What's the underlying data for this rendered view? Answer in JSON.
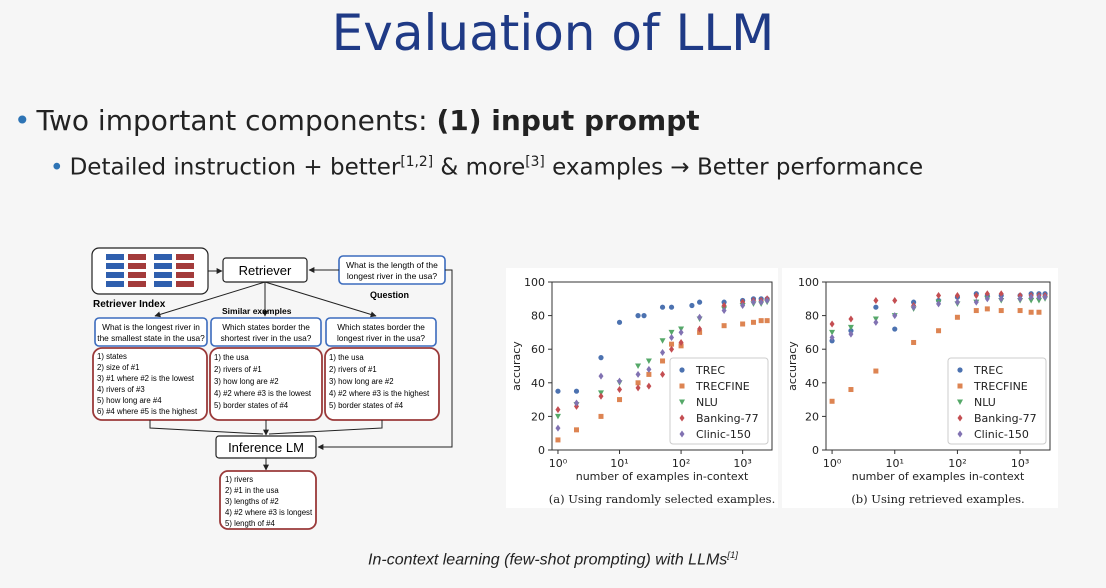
{
  "slide": {
    "title": "Evaluation of LLM",
    "bullet1_text": "Two important components: ",
    "bullet1_bold": "(1) input prompt",
    "bullet2": {
      "p1": "Detailed instruction + better",
      "ref1": "[1,2]",
      "p2": " & more",
      "ref2": "[3]",
      "p3": " examples → Better performance"
    },
    "caption": {
      "text": "In-context learning (few-shot prompting) with LLMs",
      "ref": "[1]"
    }
  },
  "diagram": {
    "retriever": "Retriever",
    "retriever_index": "Retriever Index",
    "similar_examples": "Similar examples",
    "question_label": "Question",
    "question_lines": [
      "What is the length of the",
      "longest river in the usa?"
    ],
    "examples": [
      {
        "q": [
          "What is the longest river in",
          "the smallest state in the usa?"
        ],
        "steps": [
          "1) states",
          "2) size of #1",
          "3) #1 where #2 is the lowest",
          "4) rivers of #3",
          "5) how long are #4",
          "6) #4 where #5 is the highest"
        ]
      },
      {
        "q": [
          "Which states border the",
          "shortest river in the usa?"
        ],
        "steps": [
          "1) the usa",
          "2) rivers of #1",
          "3) how long are #2",
          "4) #2 where #3 is the lowest",
          "5) border states of #4"
        ]
      },
      {
        "q": [
          "Which states border the",
          "longest river in the usa?"
        ],
        "steps": [
          "1) the usa",
          "2) rivers of #1",
          "3) how long are #2",
          "4) #2 where #3 is the highest",
          "5) border states of #4"
        ]
      }
    ],
    "inference": "Inference LM",
    "output": [
      "1) rivers",
      "2) #1 in the usa",
      "3) lengths of #2",
      "4) #2 where #3 is longest",
      "5) length of #4"
    ]
  },
  "chart_data": [
    {
      "type": "scatter",
      "caption": "(a) Using randomly selected examples.",
      "xlabel": "number of examples in-context",
      "ylabel": "accuracy",
      "xscale": "log",
      "xlim": [
        0.8,
        3000
      ],
      "ylim": [
        0,
        100
      ],
      "xticks": [
        "10⁰",
        "10¹",
        "10²",
        "10³"
      ],
      "yticks": [
        "0",
        "20",
        "40",
        "60",
        "80",
        "100"
      ],
      "legend_position": "lower-right",
      "series": [
        {
          "name": "TREC",
          "color": "#4c72b0",
          "marker": "circle",
          "points": [
            [
              1,
              35
            ],
            [
              2,
              35
            ],
            [
              5,
              55
            ],
            [
              10,
              76
            ],
            [
              20,
              80
            ],
            [
              25,
              80
            ],
            [
              50,
              85
            ],
            [
              70,
              85
            ],
            [
              150,
              86
            ],
            [
              200,
              88
            ],
            [
              500,
              88
            ],
            [
              1000,
              89
            ],
            [
              1500,
              90
            ],
            [
              2000,
              90
            ],
            [
              2500,
              90
            ]
          ]
        },
        {
          "name": "TRECFINE",
          "color": "#dd8452",
          "marker": "square",
          "points": [
            [
              1,
              6
            ],
            [
              2,
              12
            ],
            [
              5,
              20
            ],
            [
              10,
              30
            ],
            [
              20,
              40
            ],
            [
              30,
              45
            ],
            [
              50,
              53
            ],
            [
              70,
              63
            ],
            [
              100,
              62
            ],
            [
              200,
              70
            ],
            [
              500,
              74
            ],
            [
              1000,
              75
            ],
            [
              1500,
              76
            ],
            [
              2000,
              77
            ],
            [
              2500,
              77
            ]
          ]
        },
        {
          "name": "NLU",
          "color": "#55a868",
          "marker": "triangle",
          "points": [
            [
              1,
              20
            ],
            [
              2,
              27
            ],
            [
              5,
              34
            ],
            [
              10,
              40
            ],
            [
              20,
              50
            ],
            [
              30,
              53
            ],
            [
              50,
              65
            ],
            [
              70,
              70
            ],
            [
              100,
              72
            ],
            [
              200,
              78
            ],
            [
              500,
              84
            ],
            [
              1000,
              86
            ],
            [
              1500,
              87
            ],
            [
              2000,
              87
            ],
            [
              2500,
              88
            ]
          ]
        },
        {
          "name": "Banking-77",
          "color": "#c44e52",
          "marker": "diamond",
          "points": [
            [
              1,
              24
            ],
            [
              2,
              26
            ],
            [
              5,
              32
            ],
            [
              10,
              36
            ],
            [
              20,
              37
            ],
            [
              30,
              38
            ],
            [
              50,
              45
            ],
            [
              70,
              60
            ],
            [
              100,
              64
            ],
            [
              200,
              72
            ],
            [
              500,
              86
            ],
            [
              1000,
              88
            ],
            [
              1500,
              89
            ],
            [
              2000,
              89
            ],
            [
              2500,
              90
            ]
          ]
        },
        {
          "name": "Clinic-150",
          "color": "#8172b2",
          "marker": "diamond",
          "points": [
            [
              1,
              13
            ],
            [
              2,
              28
            ],
            [
              5,
              44
            ],
            [
              10,
              41
            ],
            [
              20,
              45
            ],
            [
              30,
              48
            ],
            [
              50,
              58
            ],
            [
              70,
              67
            ],
            [
              100,
              70
            ],
            [
              200,
              79
            ],
            [
              500,
              83
            ],
            [
              1000,
              86
            ],
            [
              1500,
              88
            ],
            [
              2000,
              88
            ],
            [
              2500,
              89
            ]
          ]
        }
      ]
    },
    {
      "type": "scatter",
      "caption": "(b) Using retrieved examples.",
      "xlabel": "number of examples in-context",
      "ylabel": "accuracy",
      "xscale": "log",
      "xlim": [
        0.8,
        3000
      ],
      "ylim": [
        0,
        100
      ],
      "xticks": [
        "10⁰",
        "10¹",
        "10²",
        "10³"
      ],
      "yticks": [
        "0",
        "20",
        "40",
        "60",
        "80",
        "100"
      ],
      "legend_position": "lower-right",
      "series": [
        {
          "name": "TREC",
          "color": "#4c72b0",
          "marker": "circle",
          "points": [
            [
              1,
              65
            ],
            [
              2,
              71
            ],
            [
              5,
              85
            ],
            [
              10,
              72
            ],
            [
              20,
              88
            ],
            [
              50,
              89
            ],
            [
              100,
              91
            ],
            [
              200,
              93
            ],
            [
              300,
              92
            ],
            [
              500,
              92
            ],
            [
              1000,
              92
            ],
            [
              1500,
              93
            ],
            [
              2000,
              93
            ],
            [
              2500,
              93
            ]
          ]
        },
        {
          "name": "TRECFINE",
          "color": "#dd8452",
          "marker": "square",
          "points": [
            [
              1,
              29
            ],
            [
              2,
              36
            ],
            [
              5,
              47
            ],
            [
              20,
              64
            ],
            [
              50,
              71
            ],
            [
              100,
              79
            ],
            [
              200,
              83
            ],
            [
              300,
              84
            ],
            [
              500,
              83
            ],
            [
              1000,
              83
            ],
            [
              1500,
              82
            ],
            [
              2000,
              82
            ]
          ]
        },
        {
          "name": "NLU",
          "color": "#55a868",
          "marker": "triangle",
          "points": [
            [
              1,
              70
            ],
            [
              2,
              73
            ],
            [
              5,
              78
            ],
            [
              10,
              80
            ],
            [
              20,
              84
            ],
            [
              50,
              88
            ],
            [
              100,
              87
            ],
            [
              200,
              88
            ],
            [
              300,
              90
            ],
            [
              500,
              89
            ],
            [
              1000,
              89
            ],
            [
              1500,
              89
            ],
            [
              2000,
              89
            ],
            [
              2500,
              90
            ]
          ]
        },
        {
          "name": "Banking-77",
          "color": "#c44e52",
          "marker": "diamond",
          "points": [
            [
              1,
              75
            ],
            [
              2,
              78
            ],
            [
              5,
              89
            ],
            [
              10,
              89
            ],
            [
              20,
              86
            ],
            [
              50,
              92
            ],
            [
              100,
              92
            ],
            [
              200,
              92
            ],
            [
              300,
              93
            ],
            [
              500,
              93
            ],
            [
              1000,
              92
            ],
            [
              1500,
              92
            ],
            [
              2000,
              92
            ],
            [
              2500,
              92
            ]
          ]
        },
        {
          "name": "Clinic-150",
          "color": "#8172b2",
          "marker": "diamond",
          "points": [
            [
              1,
              67
            ],
            [
              2,
              69
            ],
            [
              5,
              76
            ],
            [
              10,
              80
            ],
            [
              20,
              85
            ],
            [
              50,
              87
            ],
            [
              100,
              88
            ],
            [
              200,
              88
            ],
            [
              300,
              90
            ],
            [
              500,
              90
            ],
            [
              1000,
              90
            ],
            [
              1500,
              91
            ],
            [
              2000,
              91
            ],
            [
              2500,
              91
            ]
          ]
        }
      ]
    }
  ]
}
